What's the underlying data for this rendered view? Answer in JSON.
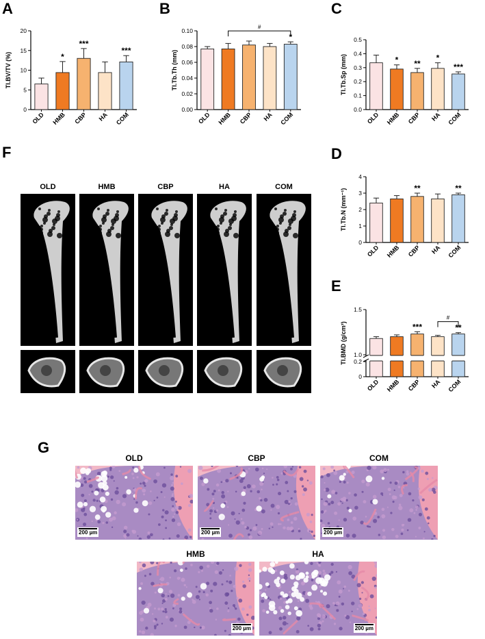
{
  "panels": {
    "A": "A",
    "B": "B",
    "C": "C",
    "D": "D",
    "E": "E",
    "F": "F",
    "G": "G"
  },
  "colors": {
    "OLD": "#fbe3e4",
    "HMB": "#ef7a22",
    "CBP": "#f6b26f",
    "HA": "#fde3c7",
    "COM": "#b9d4ee"
  },
  "chart_data": [
    {
      "id": "A",
      "type": "bar",
      "categories": [
        "OLD",
        "HMB",
        "CBP",
        "HA",
        "COM"
      ],
      "values": [
        6.5,
        9.4,
        13.0,
        9.4,
        12.1
      ],
      "errors": [
        1.5,
        2.8,
        2.5,
        2.7,
        1.6
      ],
      "sig": [
        "",
        "*",
        "***",
        "",
        "***"
      ],
      "ylabel": "Tl.BV/TV (%)",
      "ylim": [
        0,
        20
      ],
      "yticks": [
        0,
        5,
        10,
        15,
        20
      ],
      "ytick_labels": [
        "0",
        "5",
        "10",
        "15",
        "20"
      ]
    },
    {
      "id": "B",
      "type": "bar",
      "categories": [
        "OLD",
        "HMB",
        "CBP",
        "HA",
        "COM"
      ],
      "values": [
        0.077,
        0.077,
        0.082,
        0.08,
        0.083
      ],
      "errors": [
        0.003,
        0.007,
        0.005,
        0.004,
        0.003
      ],
      "sig": [
        "",
        "",
        "",
        "",
        "*"
      ],
      "bracket": {
        "from": 1,
        "to": 4,
        "label": "#"
      },
      "ylabel": "Tl.Tb.Th (mm)",
      "ylim": [
        0,
        0.1
      ],
      "yticks": [
        0,
        0.02,
        0.04,
        0.06,
        0.08,
        0.1
      ],
      "ytick_labels": [
        "0.00",
        "0.02",
        "0.04",
        "0.06",
        "0.08",
        "0.10"
      ]
    },
    {
      "id": "C",
      "type": "bar",
      "categories": [
        "OLD",
        "HMB",
        "CBP",
        "HA",
        "COM"
      ],
      "values": [
        0.335,
        0.29,
        0.265,
        0.295,
        0.255
      ],
      "errors": [
        0.055,
        0.03,
        0.03,
        0.04,
        0.015
      ],
      "sig": [
        "",
        "*",
        "**",
        "*",
        "***"
      ],
      "ylabel": "Tl.Tb.Sp (mm)",
      "ylim": [
        0,
        0.5
      ],
      "yticks": [
        0,
        0.1,
        0.2,
        0.3,
        0.4,
        0.5
      ],
      "ytick_labels": [
        "0.0",
        "0.1",
        "0.2",
        "0.3",
        "0.4",
        "0.5"
      ]
    },
    {
      "id": "D",
      "type": "bar",
      "categories": [
        "OLD",
        "HMB",
        "CBP",
        "HA",
        "COM"
      ],
      "values": [
        2.4,
        2.65,
        2.8,
        2.65,
        2.9
      ],
      "errors": [
        0.3,
        0.2,
        0.2,
        0.3,
        0.1
      ],
      "sig": [
        "",
        "",
        "**",
        "",
        "**"
      ],
      "ylabel": "Tl.Tb.N (mm⁻¹)",
      "ylim": [
        0,
        4
      ],
      "yticks": [
        0,
        1,
        2,
        3,
        4
      ],
      "ytick_labels": [
        "0",
        "1",
        "2",
        "3",
        "4"
      ]
    },
    {
      "id": "E",
      "type": "bar",
      "categories": [
        "OLD",
        "HMB",
        "CBP",
        "HA",
        "COM"
      ],
      "values": [
        1.18,
        1.2,
        1.23,
        1.2,
        1.23
      ],
      "errors": [
        0.02,
        0.02,
        0.025,
        0.015,
        0.015
      ],
      "sig": [
        "",
        "",
        "***",
        "",
        "**"
      ],
      "bracket": {
        "from": 3,
        "to": 4,
        "label": "#"
      },
      "ylabel": "Tl.BMD (g/cm³)",
      "axis_break": true,
      "ylim_lower": [
        0,
        0.2
      ],
      "ylim_upper": [
        1.0,
        1.5
      ],
      "yticks_lower": [
        0,
        0.2
      ],
      "ytick_labels_lower": [
        "0",
        "0.2"
      ],
      "yticks_upper": [
        1.0,
        1.5
      ],
      "ytick_labels_upper": [
        "1.0",
        "1.5"
      ]
    }
  ],
  "microct": {
    "labels": [
      "OLD",
      "HMB",
      "CBP",
      "HA",
      "COM"
    ]
  },
  "histology": {
    "top": [
      {
        "title": "OLD",
        "scale": "200 µm"
      },
      {
        "title": "CBP",
        "scale": "200 µm"
      },
      {
        "title": "COM",
        "scale": "200 µm"
      }
    ],
    "bottom": [
      {
        "title": "HMB",
        "scale": "200 µm"
      },
      {
        "title": "HA",
        "scale": "200 µm"
      }
    ]
  }
}
